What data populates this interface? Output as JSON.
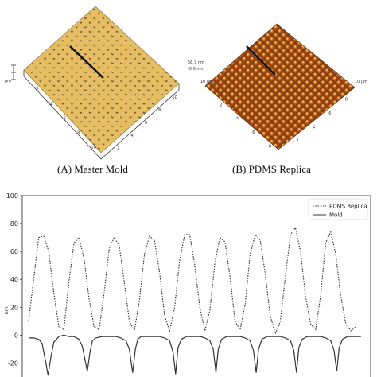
{
  "panels": {
    "a": {
      "caption": "(A) Master Mold",
      "surface_color": "#e8c068",
      "dot_color": "#6b5320",
      "tick_labels": [
        "2",
        "4",
        "6",
        "8",
        "10",
        "2",
        "4",
        "6",
        "8",
        "10"
      ],
      "z_unit": "µm"
    },
    "b": {
      "caption": "(B) PDMS Replica",
      "surface_color": "#b15a1d",
      "highlight_color": "#f2b35a",
      "z_labels": [
        "58.7 nm",
        "-0.0 nm"
      ],
      "axis_labels": [
        "10 µm",
        "10 µm"
      ],
      "tick_labels": [
        "2",
        "4",
        "6",
        "8",
        "2",
        "4",
        "6",
        "8"
      ]
    }
  },
  "chart_data": {
    "type": "line",
    "title": "",
    "xlabel": "",
    "ylabel": "nm",
    "ylim": [
      -30,
      100
    ],
    "yticks": [
      -20,
      0,
      20,
      40,
      60,
      80,
      100
    ],
    "xlim": [
      0,
      100
    ],
    "grid": false,
    "legend_position": "top-right",
    "series": [
      {
        "name": "PDMS Replica",
        "style": "dotted",
        "color": "#333333",
        "x": [
          0,
          1.5,
          3,
          4.5,
          6,
          7.5,
          9,
          10.5,
          12,
          13.5,
          15,
          16.5,
          18,
          19.5,
          21,
          22.5,
          24,
          25.5,
          27,
          28.5,
          30,
          31.5,
          33,
          34.5,
          36,
          37.5,
          39,
          40.5,
          42,
          43.5,
          45,
          46.5,
          48,
          49.5,
          51,
          52.5,
          54,
          55.5,
          57,
          58.5,
          60,
          61.5,
          63,
          64.5,
          66,
          67.5,
          69,
          70.5,
          72,
          73.5,
          75,
          76.5,
          78,
          79.5,
          81,
          82.5,
          84,
          85.5,
          87,
          88.5,
          90,
          91.5,
          93,
          94.5,
          96,
          97.5
        ],
        "values": [
          10,
          40,
          70,
          71,
          60,
          30,
          6,
          4,
          38,
          66,
          70,
          55,
          26,
          6,
          4,
          30,
          62,
          70,
          64,
          38,
          10,
          3,
          25,
          58,
          71,
          68,
          45,
          14,
          3,
          20,
          54,
          72,
          72,
          50,
          20,
          3,
          18,
          52,
          70,
          67,
          42,
          10,
          4,
          22,
          58,
          72,
          68,
          44,
          14,
          1,
          10,
          42,
          72,
          77,
          60,
          28,
          8,
          4,
          28,
          66,
          74,
          58,
          28,
          8,
          3,
          6
        ]
      },
      {
        "name": "Mold",
        "style": "solid",
        "color": "#333333",
        "x": [
          0,
          1.5,
          3,
          4,
          5,
          5.8,
          6.6,
          7.5,
          9,
          10.5,
          12,
          13.5,
          15,
          16,
          17.5,
          18.3,
          19,
          20,
          22,
          24,
          26,
          27.5,
          29,
          30,
          31,
          31.8,
          32.5,
          33.5,
          35,
          37,
          39,
          40.5,
          42,
          43,
          43.8,
          44.5,
          45.5,
          47,
          49,
          51,
          52.5,
          54,
          55,
          55.8,
          56.5,
          57.5,
          59,
          61,
          63,
          64.5,
          66,
          67,
          67.8,
          68.5,
          69.5,
          71,
          73,
          75,
          76.5,
          78,
          79,
          79.8,
          80.5,
          81.5,
          83,
          85,
          87,
          88.5,
          90,
          91,
          91.8,
          92.5,
          93.5,
          95,
          97,
          99
        ],
        "values": [
          -2,
          -2,
          -3,
          -6,
          -18,
          -29,
          -16,
          -5,
          -1,
          0,
          -1,
          -1,
          -3,
          -8,
          -26,
          -12,
          -4,
          -2,
          -1,
          -1,
          -1,
          -2,
          -4,
          -10,
          -27,
          -10,
          -3,
          -1,
          -1,
          -1,
          -1,
          -2,
          -4,
          -12,
          -28,
          -9,
          -3,
          -1,
          -1,
          -1,
          -2,
          -4,
          -10,
          -27,
          -10,
          -3,
          -1,
          -1,
          -1,
          -2,
          -4,
          -11,
          -27,
          -10,
          -3,
          -1,
          -1,
          -1,
          -2,
          -4,
          -11,
          -27,
          -9,
          -3,
          -1,
          -1,
          -1,
          -2,
          -4,
          -11,
          -26,
          -9,
          -3,
          -1,
          -1,
          -1
        ]
      }
    ]
  }
}
